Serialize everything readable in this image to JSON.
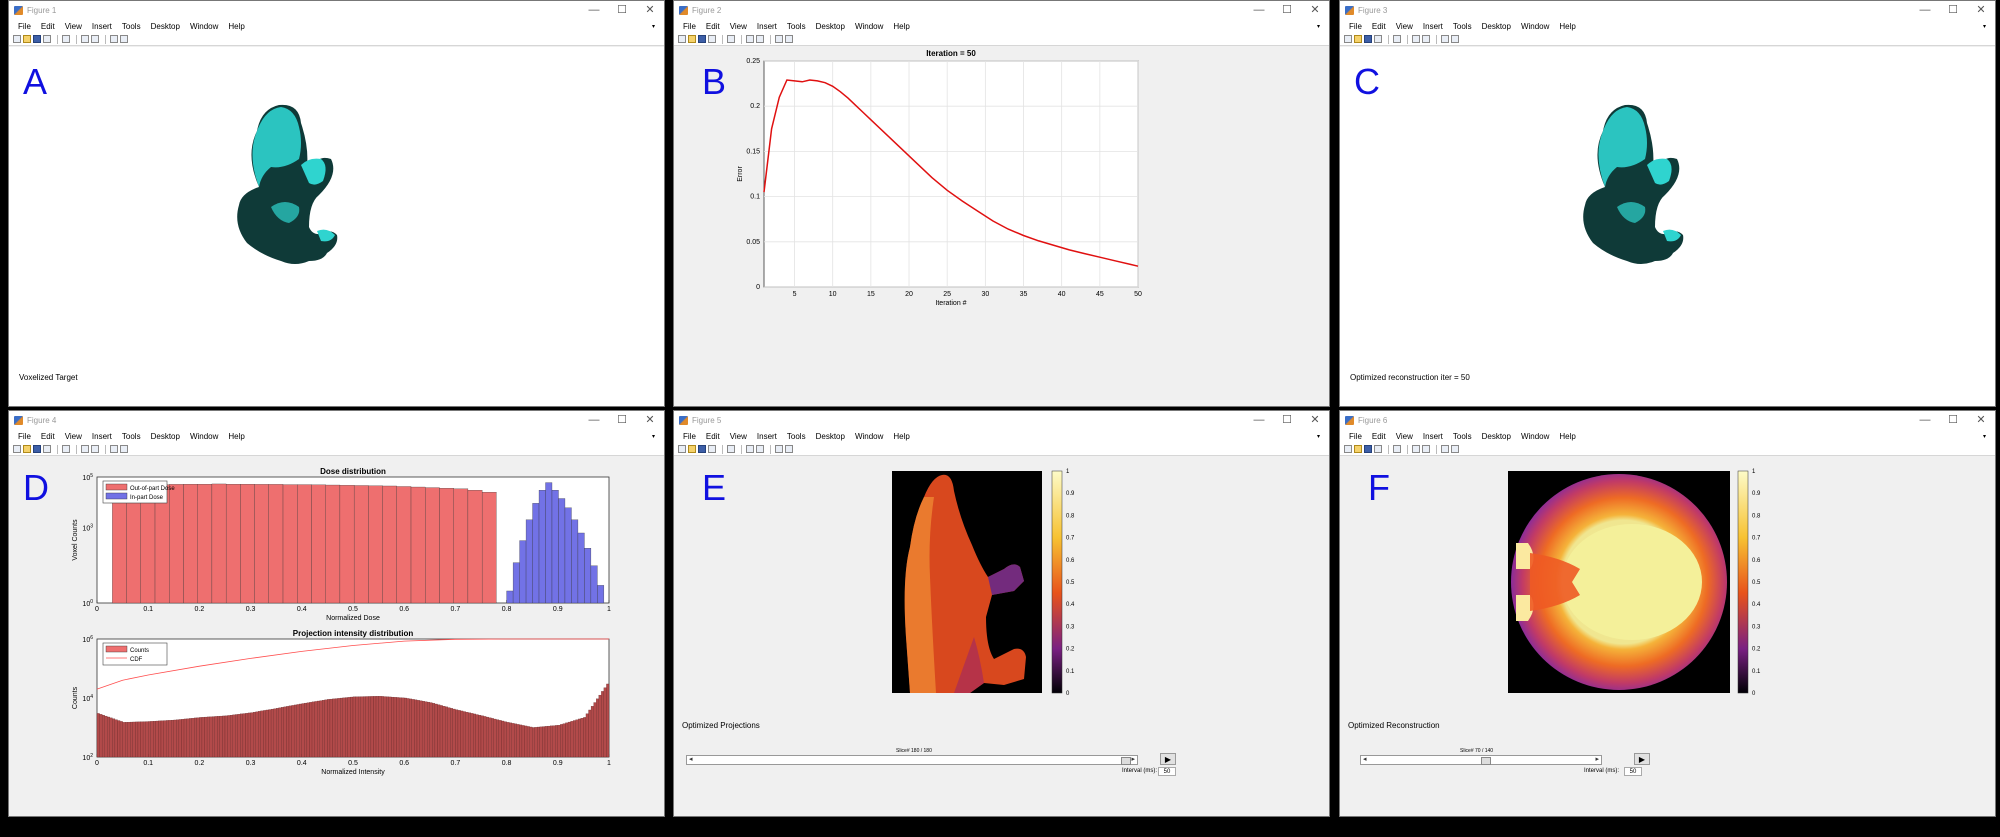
{
  "menu": [
    "File",
    "Edit",
    "View",
    "Insert",
    "Tools",
    "Desktop",
    "Window",
    "Help"
  ],
  "window_controls": [
    "—",
    "☐",
    "✕"
  ],
  "panels": {
    "A": {
      "title": "Figure 1",
      "letter": "A",
      "caption": "Voxelized Target"
    },
    "B": {
      "title": "Figure 2",
      "letter": "B",
      "caption": ""
    },
    "C": {
      "title": "Figure 3",
      "letter": "C",
      "caption": "Optimized reconstruction iter = 50"
    },
    "D": {
      "title": "Figure 4",
      "letter": "D",
      "caption": ""
    },
    "E": {
      "title": "Figure 5",
      "letter": "E",
      "caption": "Optimized Projections",
      "slice_label": "Slice# 180 / 180",
      "interval_label": "Interval (ms):",
      "interval_value": "50"
    },
    "F": {
      "title": "Figure 6",
      "letter": "F",
      "caption": "Optimized Reconstruction",
      "slice_label": "Slice# 70 / 140",
      "interval_label": "Interval (ms):",
      "interval_value": "50"
    }
  },
  "colors": {
    "accent_letter": "#1010e0",
    "error_line": "#e01010",
    "teal": "#2fd4cf",
    "out_dose": "#ee6f6f",
    "in_dose": "#7272e6",
    "counts": "#b24a4a",
    "cdf": "#ff4d4d"
  },
  "chart_data": [
    {
      "panel": "B",
      "type": "line",
      "title": "Iteration = 50",
      "xlabel": "Iteration #",
      "ylabel": "Error",
      "xlim": [
        1,
        50
      ],
      "ylim": [
        0,
        0.25
      ],
      "xticks": [
        5,
        10,
        15,
        20,
        25,
        30,
        35,
        40,
        45,
        50
      ],
      "yticks": [
        0,
        0.05,
        0.1,
        0.15,
        0.2,
        0.25
      ],
      "grid": true,
      "series": [
        {
          "x": [
            1,
            2,
            3,
            4,
            5,
            6,
            7,
            8,
            9,
            10,
            11,
            12,
            13,
            14,
            15,
            17,
            19,
            21,
            23,
            25,
            27,
            29,
            31,
            33,
            35,
            37,
            39,
            41,
            43,
            45,
            47,
            49,
            50
          ],
          "y": [
            0.105,
            0.175,
            0.21,
            0.229,
            0.228,
            0.227,
            0.229,
            0.228,
            0.226,
            0.222,
            0.216,
            0.209,
            0.201,
            0.193,
            0.185,
            0.169,
            0.153,
            0.137,
            0.121,
            0.107,
            0.095,
            0.084,
            0.073,
            0.064,
            0.057,
            0.051,
            0.046,
            0.041,
            0.037,
            0.033,
            0.029,
            0.025,
            0.023
          ]
        }
      ]
    },
    {
      "panel": "D",
      "type": "bar",
      "title": "Dose distribution",
      "xlabel": "Normalized Dose",
      "ylabel": "Voxel Counts",
      "xlim": [
        0,
        1
      ],
      "yscale": "log",
      "ylim_exp": [
        0,
        5
      ],
      "xticks": [
        0,
        0.1,
        0.2,
        0.3,
        0.4,
        0.5,
        0.6,
        0.7,
        0.8,
        0.9,
        1
      ],
      "legend": "top-left",
      "series": [
        {
          "name": "Out-of-part Dose",
          "bins": [
            0.03,
            0.78
          ],
          "values": [
            33000,
            42000,
            48000,
            50000,
            51000,
            52000,
            52000,
            53000,
            52000,
            52000,
            51000,
            51000,
            50000,
            50000,
            49000,
            48000,
            47000,
            46000,
            45000,
            44000,
            42000,
            40000,
            38000,
            36000,
            34000,
            30000,
            25000
          ]
        },
        {
          "name": "In-part Dose",
          "bins": [
            0.8,
            0.99
          ],
          "values": [
            3,
            40,
            300,
            2000,
            9000,
            30000,
            60000,
            30000,
            14000,
            6000,
            2000,
            600,
            150,
            30,
            5
          ]
        }
      ]
    },
    {
      "panel": "D",
      "type": "bar",
      "title": "Projection intensity distribution",
      "xlabel": "Normalized Intensity",
      "ylabel": "Counts",
      "xlim": [
        0,
        1
      ],
      "yscale": "log",
      "ylim_exp": [
        2,
        6
      ],
      "xticks": [
        0,
        0.1,
        0.2,
        0.3,
        0.4,
        0.5,
        0.6,
        0.7,
        0.8,
        0.9,
        1
      ],
      "legend": "top-left",
      "series": [
        {
          "name": "Counts",
          "x": [
            0,
            0.05,
            0.1,
            0.15,
            0.2,
            0.25,
            0.3,
            0.35,
            0.4,
            0.45,
            0.5,
            0.55,
            0.6,
            0.65,
            0.7,
            0.75,
            0.8,
            0.85,
            0.9,
            0.95,
            1
          ],
          "y": [
            3000,
            1500,
            1600,
            1800,
            2200,
            2500,
            3200,
            4500,
            6500,
            9000,
            11000,
            11500,
            10000,
            7000,
            4000,
            2500,
            1500,
            1000,
            1200,
            2200,
            40000
          ]
        },
        {
          "name": "CDF",
          "x": [
            0,
            0.05,
            0.1,
            0.2,
            0.3,
            0.4,
            0.5,
            0.6,
            0.7,
            0.8,
            0.9,
            1
          ],
          "y": [
            20000,
            40000,
            60000,
            120000,
            220000,
            380000,
            600000,
            850000,
            980000,
            1000000,
            1000000,
            1000000
          ]
        }
      ]
    }
  ],
  "colorbar_ticks": [
    "1",
    "0.9",
    "0.8",
    "0.7",
    "0.6",
    "0.5",
    "0.4",
    "0.3",
    "0.2",
    "0.1",
    "0"
  ]
}
